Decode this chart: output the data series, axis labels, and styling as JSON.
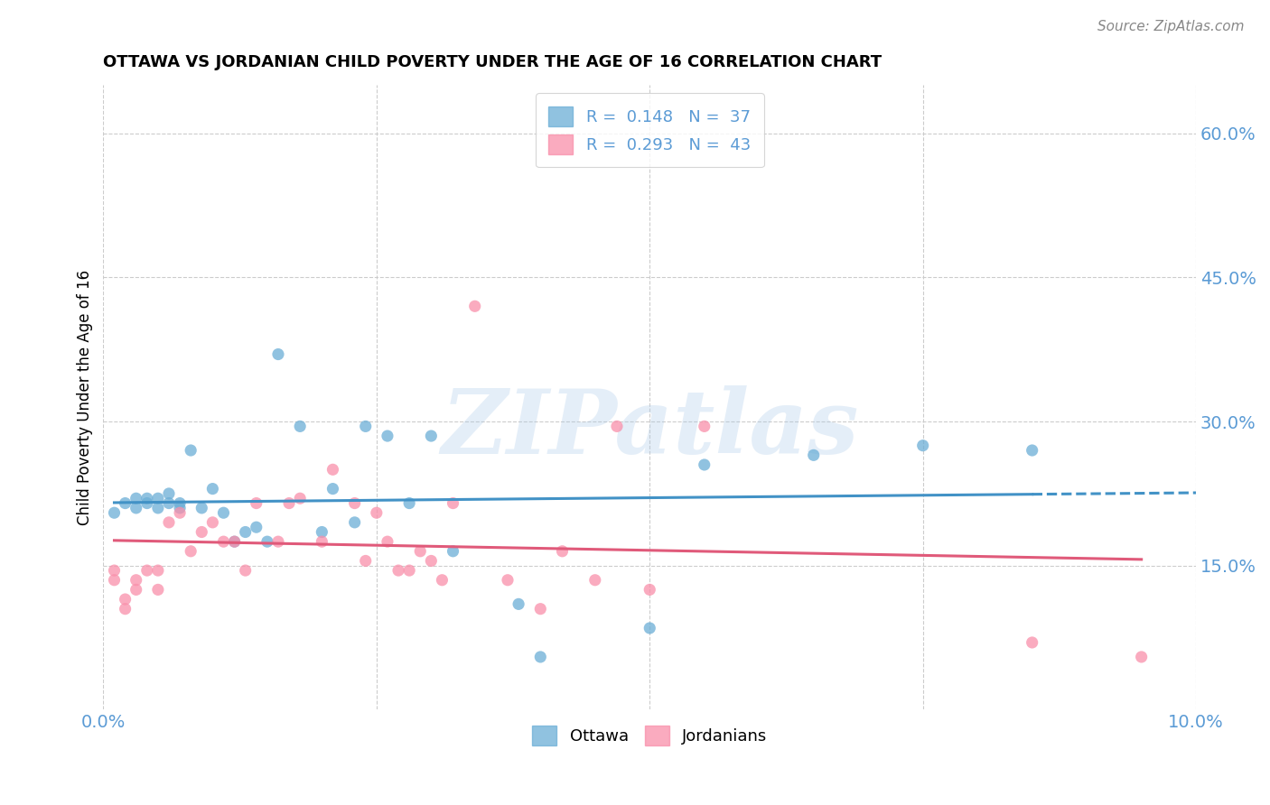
{
  "title": "OTTAWA VS JORDANIAN CHILD POVERTY UNDER THE AGE OF 16 CORRELATION CHART",
  "source": "Source: ZipAtlas.com",
  "ylabel": "Child Poverty Under the Age of 16",
  "xlim": [
    0.0,
    0.1
  ],
  "ylim": [
    0.0,
    0.65
  ],
  "yticks": [
    0.15,
    0.3,
    0.45,
    0.6
  ],
  "ytick_labels": [
    "15.0%",
    "30.0%",
    "45.0%",
    "60.0%"
  ],
  "xticks": [
    0.0,
    0.025,
    0.05,
    0.075,
    0.1
  ],
  "xtick_labels": [
    "0.0%",
    "",
    "",
    "",
    "10.0%"
  ],
  "legend_R1": "0.148",
  "legend_N1": "37",
  "legend_R2": "0.293",
  "legend_N2": "43",
  "ottawa_color": "#6baed6",
  "jordanian_color": "#f98faa",
  "trend_color_ottawa": "#4292c6",
  "trend_color_jordanian": "#e05a7a",
  "watermark": "ZIPatlas",
  "background_color": "#ffffff",
  "grid_color": "#cccccc",
  "axis_label_color": "#5b9bd5",
  "ottawa_x": [
    0.001,
    0.002,
    0.003,
    0.003,
    0.004,
    0.004,
    0.005,
    0.005,
    0.006,
    0.006,
    0.007,
    0.007,
    0.008,
    0.009,
    0.01,
    0.011,
    0.012,
    0.013,
    0.014,
    0.015,
    0.016,
    0.018,
    0.02,
    0.021,
    0.023,
    0.024,
    0.026,
    0.028,
    0.03,
    0.032,
    0.038,
    0.04,
    0.05,
    0.055,
    0.065,
    0.075,
    0.085
  ],
  "ottawa_y": [
    0.205,
    0.215,
    0.22,
    0.21,
    0.215,
    0.22,
    0.21,
    0.22,
    0.215,
    0.225,
    0.215,
    0.21,
    0.27,
    0.21,
    0.23,
    0.205,
    0.175,
    0.185,
    0.19,
    0.175,
    0.37,
    0.295,
    0.185,
    0.23,
    0.195,
    0.295,
    0.285,
    0.215,
    0.285,
    0.165,
    0.11,
    0.055,
    0.085,
    0.255,
    0.265,
    0.275,
    0.27
  ],
  "jordanian_x": [
    0.001,
    0.001,
    0.002,
    0.002,
    0.003,
    0.003,
    0.004,
    0.005,
    0.005,
    0.006,
    0.007,
    0.008,
    0.009,
    0.01,
    0.011,
    0.012,
    0.013,
    0.014,
    0.016,
    0.017,
    0.018,
    0.02,
    0.021,
    0.023,
    0.024,
    0.025,
    0.026,
    0.027,
    0.028,
    0.029,
    0.03,
    0.031,
    0.032,
    0.034,
    0.037,
    0.04,
    0.042,
    0.045,
    0.047,
    0.05,
    0.055,
    0.085,
    0.095
  ],
  "jordanian_y": [
    0.145,
    0.135,
    0.115,
    0.105,
    0.135,
    0.125,
    0.145,
    0.145,
    0.125,
    0.195,
    0.205,
    0.165,
    0.185,
    0.195,
    0.175,
    0.175,
    0.145,
    0.215,
    0.175,
    0.215,
    0.22,
    0.175,
    0.25,
    0.215,
    0.155,
    0.205,
    0.175,
    0.145,
    0.145,
    0.165,
    0.155,
    0.135,
    0.215,
    0.42,
    0.135,
    0.105,
    0.165,
    0.135,
    0.295,
    0.125,
    0.295,
    0.07,
    0.055
  ],
  "trend_ottawa_x0": 0.001,
  "trend_ottawa_x1": 0.085,
  "trend_ottawa_xdash": 0.085,
  "trend_ottawa_xend": 0.1,
  "trend_jordan_x0": 0.001,
  "trend_jordan_x1": 0.095
}
